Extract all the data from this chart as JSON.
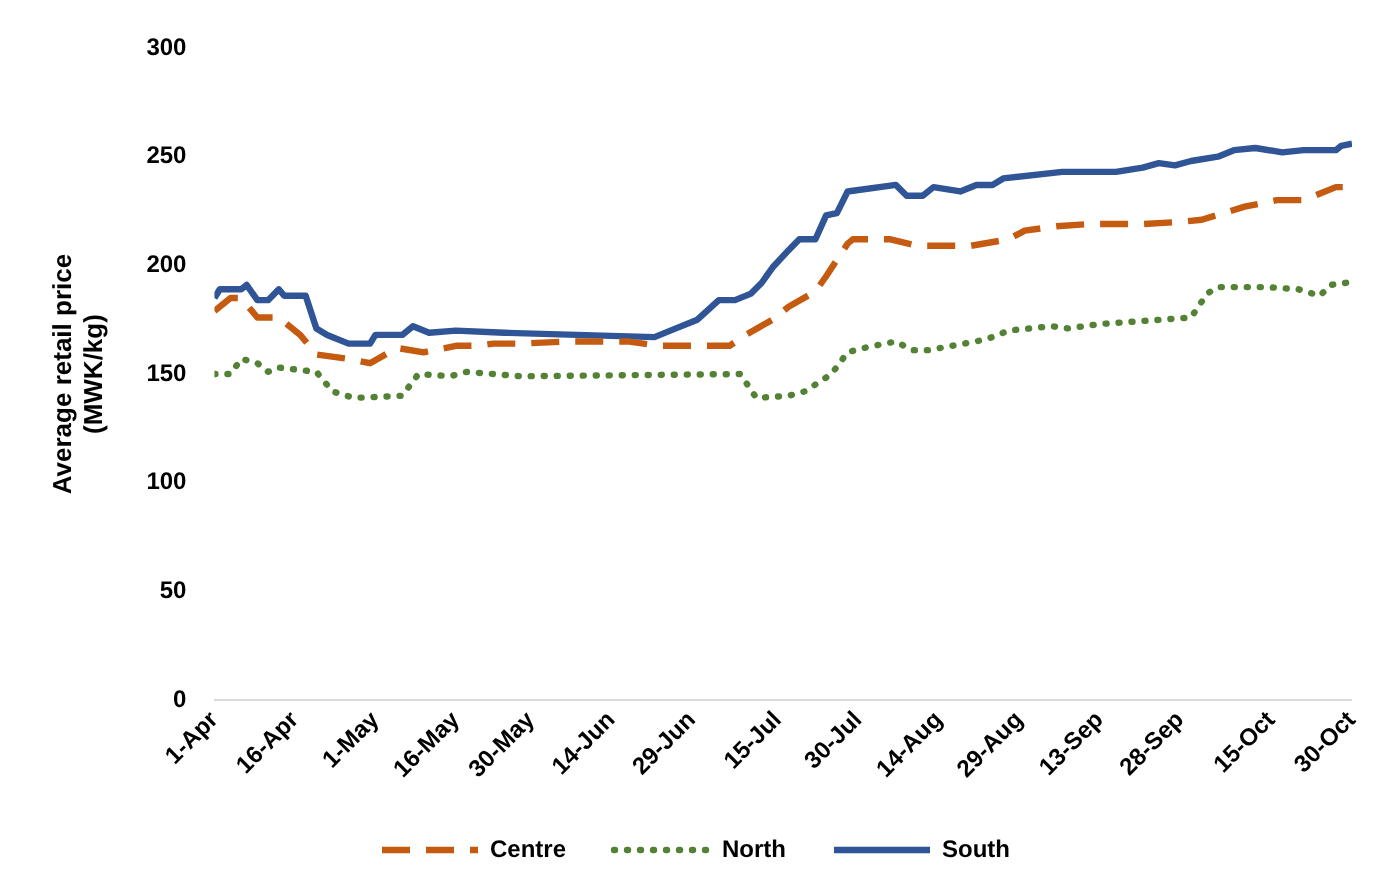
{
  "chart_data": {
    "type": "line",
    "ylabel": "Average retail price (MWK/kg)",
    "ylim": [
      0,
      300
    ],
    "yticks": [
      0,
      50,
      100,
      150,
      200,
      250,
      300
    ],
    "xlim": [
      "--04-01",
      "--10-30"
    ],
    "xticks": [
      {
        "value": "--04-01",
        "label": "1-Apr"
      },
      {
        "value": "--04-16",
        "label": "16-Apr"
      },
      {
        "value": "--05-01",
        "label": "1-May"
      },
      {
        "value": "--05-16",
        "label": "16-May"
      },
      {
        "value": "--05-30",
        "label": "30-May"
      },
      {
        "value": "--06-14",
        "label": "14-Jun"
      },
      {
        "value": "--06-29",
        "label": "29-Jun"
      },
      {
        "value": "--07-15",
        "label": "15-Jul"
      },
      {
        "value": "--07-30",
        "label": "30-Jul"
      },
      {
        "value": "--08-14",
        "label": "14-Aug"
      },
      {
        "value": "--08-29",
        "label": "29-Aug"
      },
      {
        "value": "--09-13",
        "label": "13-Sep"
      },
      {
        "value": "--09-28",
        "label": "28-Sep"
      },
      {
        "value": "--10-15",
        "label": "15-Oct"
      },
      {
        "value": "--10-30",
        "label": "30-Oct"
      }
    ],
    "grid": false,
    "legend": "bottom",
    "marker": "none",
    "series": [
      {
        "name": "Centre",
        "color": "#c55a11",
        "line_style": "dashed",
        "x": [
          "--04-01",
          "--04-04",
          "--04-06",
          "--04-09",
          "--04-13",
          "--04-17",
          "--04-20",
          "--04-26",
          "--04-30",
          "--05-05",
          "--05-10",
          "--05-16",
          "--05-20",
          "--05-23",
          "--05-28",
          "--06-06",
          "--06-17",
          "--06-23",
          "--07-06",
          "--07-09",
          "--07-14",
          "--07-17",
          "--07-22",
          "--07-24",
          "--07-28",
          "--07-29",
          "--08-05",
          "--08-10",
          "--08-20",
          "--08-27",
          "--08-30",
          "--09-05",
          "--09-11",
          "--09-21",
          "--09-28",
          "--10-02",
          "--10-06",
          "--10-10",
          "--10-16",
          "--10-21",
          "--10-27",
          "--10-30"
        ],
        "values": [
          179,
          185,
          185,
          176,
          176,
          168,
          159,
          157,
          155,
          162,
          160,
          163,
          163,
          164,
          164,
          165,
          165,
          163,
          163,
          168,
          175,
          181,
          188,
          195,
          210,
          212,
          212,
          209,
          209,
          212,
          216,
          218,
          219,
          219,
          220,
          221,
          224,
          227,
          230,
          230,
          236,
          236
        ]
      },
      {
        "name": "North",
        "color": "#548235",
        "line_style": "dotted",
        "x": [
          "--04-01",
          "--04-04",
          "--04-06",
          "--04-09",
          "--04-11",
          "--04-13",
          "--04-20",
          "--04-23",
          "--04-27",
          "--05-06",
          "--05-09",
          "--05-15",
          "--05-18",
          "--05-28",
          "--07-08",
          "--07-11",
          "--07-17",
          "--07-20",
          "--07-25",
          "--07-28",
          "--07-31",
          "--08-06",
          "--08-09",
          "--08-12",
          "--08-21",
          "--08-24",
          "--08-27",
          "--09-04",
          "--09-07",
          "--09-13",
          "--09-30",
          "--10-03",
          "--10-05",
          "--10-14",
          "--10-20",
          "--10-24",
          "--10-26",
          "--10-29"
        ],
        "values": [
          150,
          150,
          157,
          155,
          151,
          153,
          151,
          142,
          139,
          140,
          150,
          149,
          151,
          149,
          150,
          139,
          140,
          142,
          150,
          160,
          162,
          165,
          161,
          161,
          165,
          167,
          170,
          172,
          171,
          173,
          176,
          187,
          190,
          190,
          189,
          186,
          191,
          192
        ]
      },
      {
        "name": "South",
        "color": "#2f5597",
        "line_style": "solid",
        "x": [
          "--04-01",
          "--04-02",
          "--04-06",
          "--04-07",
          "--04-09",
          "--04-11",
          "--04-13",
          "--04-14",
          "--04-18",
          "--04-20",
          "--04-22",
          "--04-26",
          "--04-30",
          "--05-01",
          "--05-06",
          "--05-08",
          "--05-11",
          "--05-16",
          "--05-25",
          "--06-22",
          "--06-26",
          "--06-30",
          "--07-04",
          "--07-07",
          "--07-10",
          "--07-12",
          "--07-14",
          "--07-17",
          "--07-19",
          "--07-22",
          "--07-24",
          "--07-26",
          "--07-28",
          "--08-06",
          "--08-08",
          "--08-11",
          "--08-13",
          "--08-18",
          "--08-21",
          "--08-24",
          "--08-26",
          "--09-06",
          "--09-16",
          "--09-21",
          "--09-24",
          "--09-27",
          "--09-30",
          "--10-05",
          "--10-08",
          "--10-12",
          "--10-17",
          "--10-21",
          "--10-27",
          "--10-28",
          "--10-30"
        ],
        "values": [
          185,
          189,
          189,
          191,
          184,
          184,
          189,
          186,
          186,
          171,
          168,
          164,
          164,
          168,
          168,
          172,
          169,
          170,
          169,
          167,
          171,
          175,
          184,
          184,
          187,
          192,
          199,
          207,
          212,
          212,
          223,
          224,
          234,
          237,
          232,
          232,
          236,
          234,
          237,
          237,
          240,
          243,
          243,
          245,
          247,
          246,
          248,
          250,
          253,
          254,
          252,
          253,
          253,
          255,
          256
        ]
      }
    ]
  }
}
